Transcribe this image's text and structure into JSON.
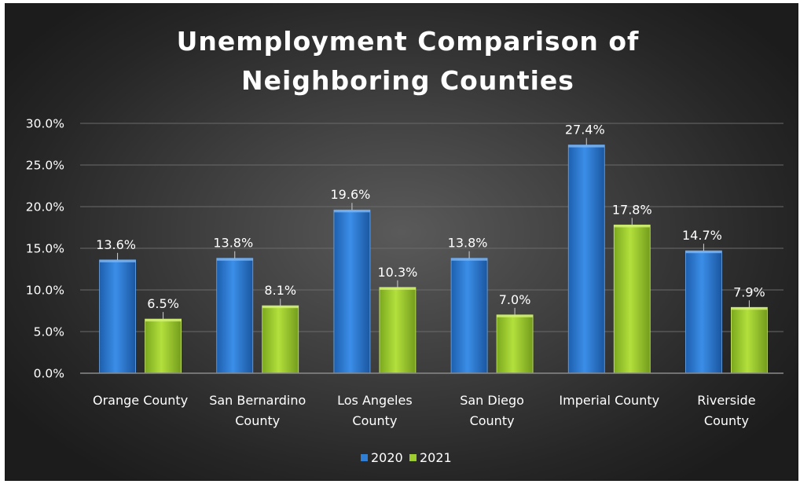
{
  "chart_data": {
    "type": "bar",
    "title": "Unemployment Comparison of Neighboring Counties",
    "title_lines": [
      "Unemployment Comparison of",
      "Neighboring Counties"
    ],
    "categories": [
      "Orange County",
      "San Bernardino County",
      "Los Angeles County",
      "San Diego County",
      "Imperial County",
      "Riverside County"
    ],
    "category_lines": [
      [
        "Orange County"
      ],
      [
        "San Bernardino",
        "County"
      ],
      [
        "Los Angeles",
        "County"
      ],
      [
        "San Diego",
        "County"
      ],
      [
        "Imperial County"
      ],
      [
        "Riverside",
        "County"
      ]
    ],
    "series": [
      {
        "name": "2020",
        "values": [
          13.6,
          13.8,
          19.6,
          13.8,
          27.4,
          14.7
        ],
        "labels": [
          "13.6%",
          "13.8%",
          "19.6%",
          "13.8%",
          "27.4%",
          "14.7%"
        ],
        "color": "#2f7fd6"
      },
      {
        "name": "2021",
        "values": [
          6.5,
          8.1,
          10.3,
          7.0,
          17.8,
          7.9
        ],
        "labels": [
          "6.5%",
          "8.1%",
          "10.3%",
          "7.0%",
          "17.8%",
          "7.9%"
        ],
        "color": "#9ccc2e"
      }
    ],
    "ylim": [
      0,
      30
    ],
    "yticks": [
      0,
      5,
      10,
      15,
      20,
      25,
      30
    ],
    "ytick_labels": [
      "0.0%",
      "5.0%",
      "10.0%",
      "15.0%",
      "20.0%",
      "25.0%",
      "30.0%"
    ],
    "xlabel": "",
    "ylabel": "",
    "grid": true,
    "legend_position": "bottom",
    "background_color": "#3a3a3a",
    "text_color": "#ffffff"
  }
}
